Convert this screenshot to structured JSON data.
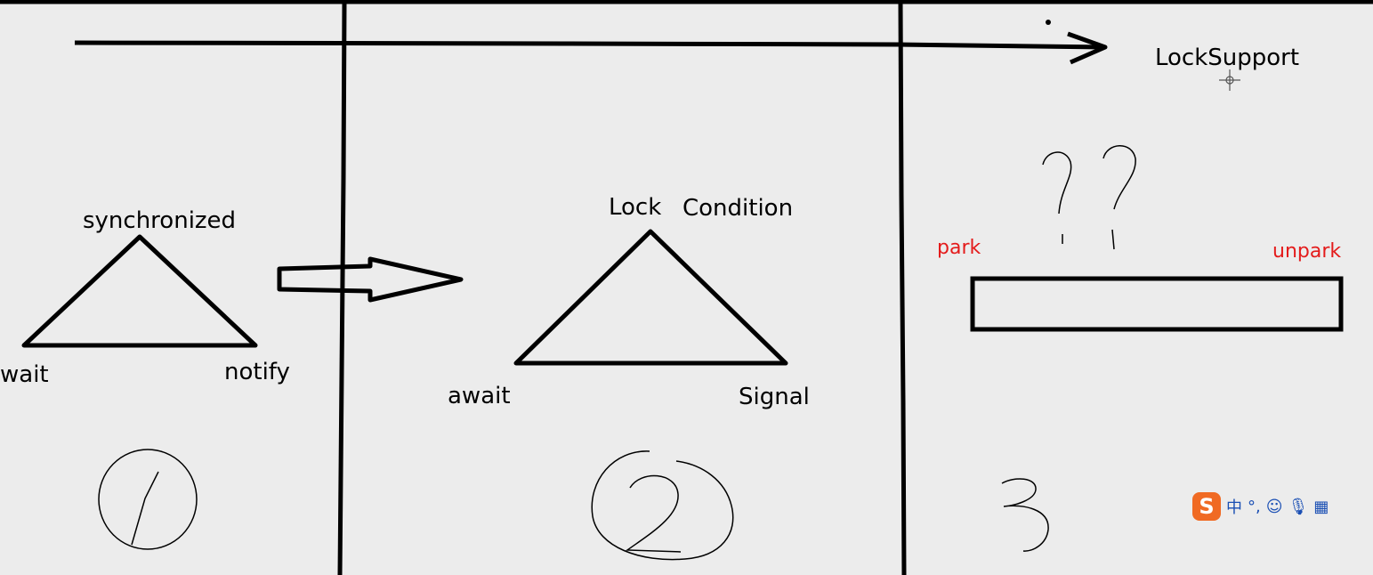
{
  "colors": {
    "background": "#ececec",
    "ink": "#000000",
    "annotation_red": "#e41b1b",
    "ime_logo": "#f06a23",
    "ime_icons": "#1a4fb4"
  },
  "section1": {
    "top_label": "synchronized",
    "left_label": "wait",
    "right_label": "notify",
    "number": "1"
  },
  "section2": {
    "top_label_a": "Lock",
    "top_label_b": "Condition",
    "left_label": "await",
    "right_label": "Signal",
    "number": "2"
  },
  "section3": {
    "title": "LockSupport",
    "left_label": "park",
    "right_label": "unpark",
    "number": "3",
    "question_marks": "??"
  },
  "ime_toolbar": {
    "logo": "S",
    "items": [
      {
        "icon": "chinese-mode-icon",
        "glyph": "中"
      },
      {
        "icon": "punctuation-icon",
        "glyph": "°,"
      },
      {
        "icon": "emoji-icon",
        "glyph": "☺"
      },
      {
        "icon": "microphone-icon",
        "glyph": "🎙"
      },
      {
        "icon": "keyboard-icon",
        "glyph": "▦"
      }
    ]
  }
}
